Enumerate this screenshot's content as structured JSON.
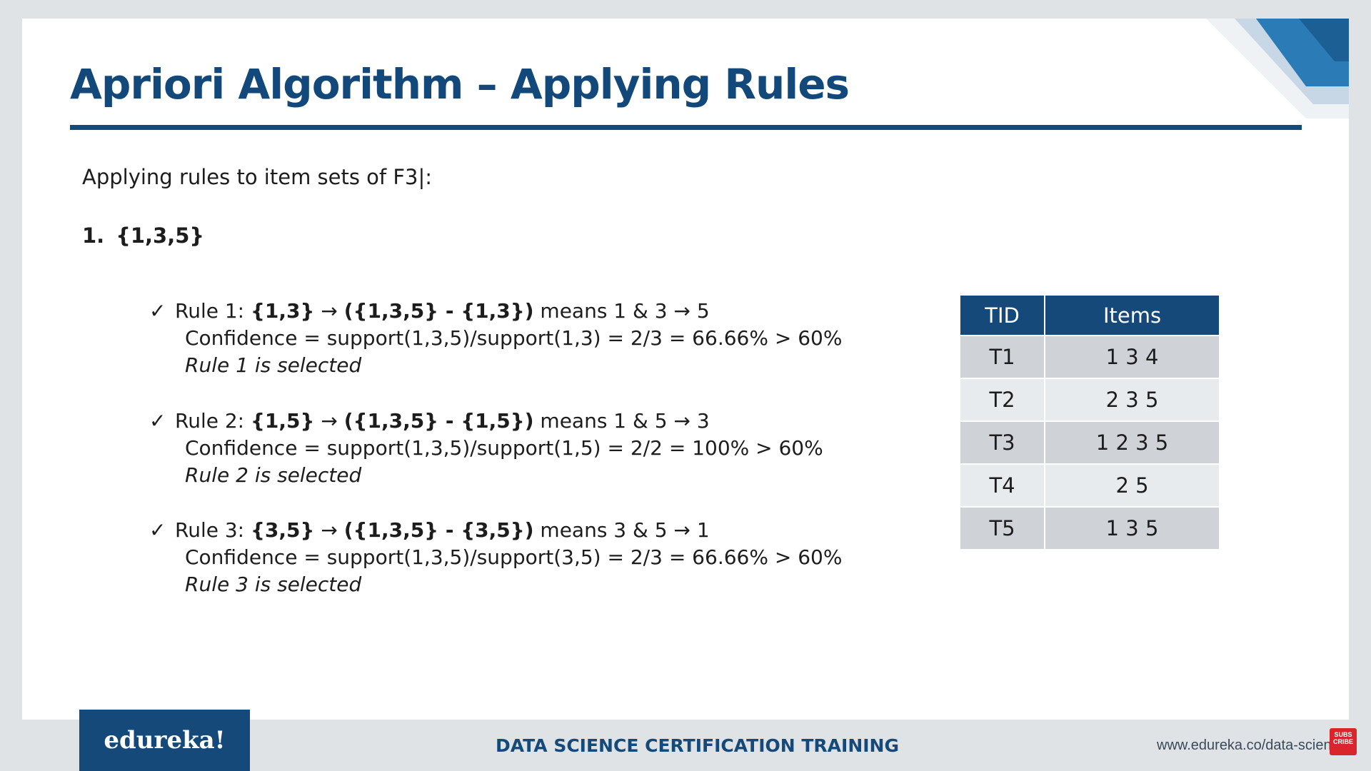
{
  "slide": {
    "title": "Apriori Algorithm – Applying Rules",
    "intro": "Applying rules to item sets of F3|:",
    "itemset": {
      "number": "1.",
      "set": "{1,3,5}"
    },
    "rules": [
      {
        "label": "Rule 1: ",
        "lhs": "{1,3}",
        "arrow": " → ",
        "rhs": "({1,3,5} - {1,3})",
        "meaning": " means 1 & 3 → 5",
        "confidence": "Confidence = support(1,3,5)/support(1,3) = 2/3 = 66.66% > 60%",
        "status": "Rule 1 is selected"
      },
      {
        "label": "Rule 2: ",
        "lhs": "{1,5}",
        "arrow": " → ",
        "rhs": "({1,3,5} - {1,5})",
        "meaning": " means 1 & 5 → 3",
        "confidence": "Confidence = support(1,3,5)/support(1,5) = 2/2 = 100% > 60%",
        "status": "Rule 2 is selected"
      },
      {
        "label": "Rule 3: ",
        "lhs": "{3,5}",
        "arrow": " → ",
        "rhs": "({1,3,5} - {3,5})",
        "meaning": " means 3 & 5 → 1",
        "confidence": "Confidence = support(1,3,5)/support(3,5) = 2/3 = 66.66% > 60%",
        "status": "Rule 3 is selected"
      }
    ],
    "check_glyph": "✓",
    "table": {
      "headers": [
        "TID",
        "Items"
      ],
      "rows": [
        [
          "T1",
          "1 3 4"
        ],
        [
          "T2",
          "2 3 5"
        ],
        [
          "T3",
          "1 2 3 5"
        ],
        [
          "T4",
          "2 5"
        ],
        [
          "T5",
          "1 3 5"
        ]
      ]
    }
  },
  "footer": {
    "logo": "edureka!",
    "training": "DATA SCIENCE CERTIFICATION TRAINING",
    "url": "www.edureka.co/data-scien",
    "subscribe": "SUBS CRIBE"
  },
  "colors": {
    "brand_blue": "#14497a",
    "table_row_dark": "#cfd3d8",
    "table_row_light": "#e8ebee",
    "subscribe_red": "#d8262c"
  }
}
